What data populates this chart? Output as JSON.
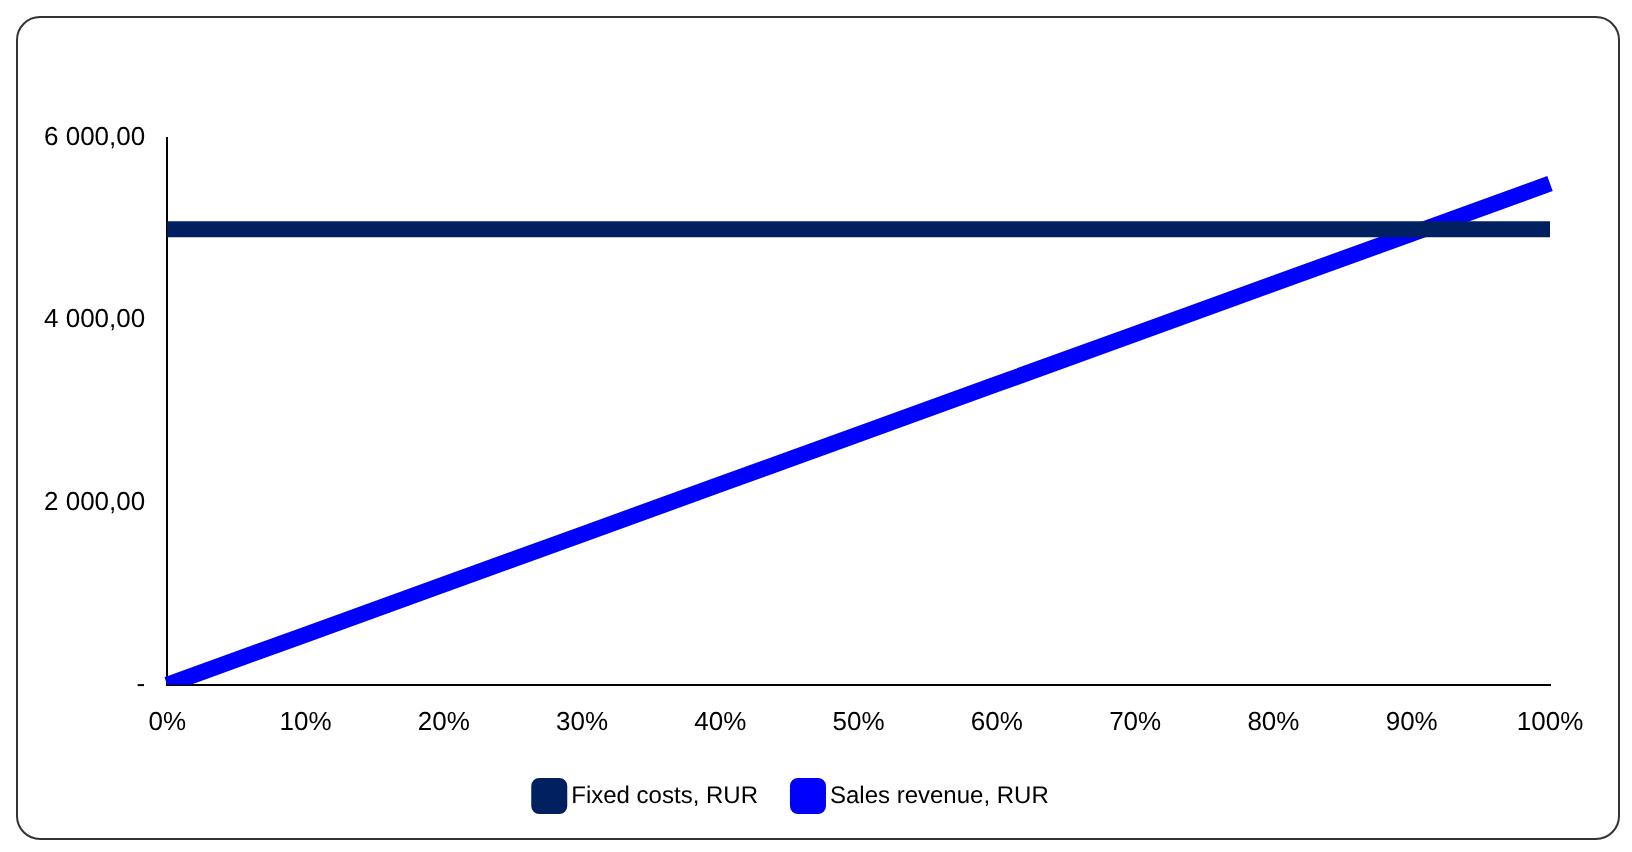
{
  "chart_data": {
    "type": "line",
    "categories": [
      "0%",
      "10%",
      "20%",
      "30%",
      "40%",
      "50%",
      "60%",
      "70%",
      "80%",
      "90%",
      "100%"
    ],
    "series": [
      {
        "name": "Fixed costs, RUR",
        "color": "#002060",
        "values": [
          5000,
          5000,
          5000,
          5000,
          5000,
          5000,
          5000,
          5000,
          5000,
          5000,
          5000
        ]
      },
      {
        "name": "Sales revenue, RUR",
        "color": "#0000ff",
        "values": [
          0,
          550,
          1100,
          1650,
          2200,
          2750,
          3300,
          3850,
          4400,
          4950,
          5500
        ]
      }
    ],
    "ylim": [
      0,
      6000
    ],
    "yticks": [
      {
        "value": 0,
        "label": "-"
      },
      {
        "value": 2000,
        "label": "2 000,00"
      },
      {
        "value": 4000,
        "label": "4 000,00"
      },
      {
        "value": 6000,
        "label": "6 000,00"
      }
    ],
    "grid": false,
    "legend": "bottom",
    "marker": "none",
    "line_style": "solid"
  }
}
